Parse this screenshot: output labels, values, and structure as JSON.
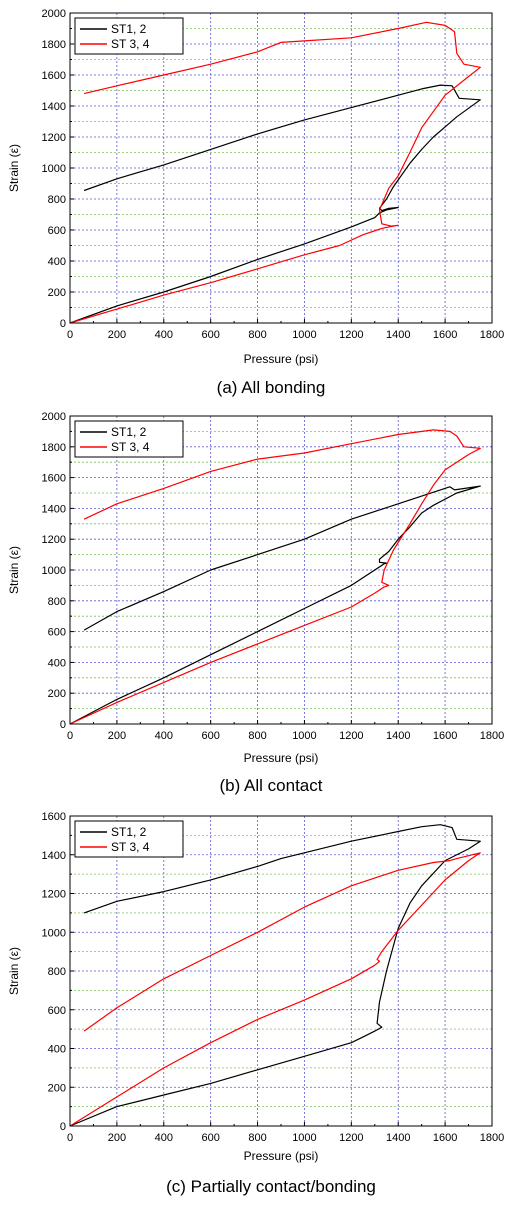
{
  "chart_data": [
    {
      "type": "line",
      "caption": "(a) All bonding",
      "xlabel": "Pressure (psi)",
      "ylabel": "Strain (ε)",
      "xlim": [
        0,
        1800
      ],
      "ylim": [
        0,
        2000
      ],
      "xticks": [
        0,
        200,
        400,
        600,
        800,
        1000,
        1200,
        1400,
        1600,
        1800
      ],
      "yticks": [
        0,
        200,
        400,
        600,
        800,
        1000,
        1200,
        1400,
        1600,
        1800,
        2000
      ],
      "grid": true,
      "legend_position": "top-left",
      "series": [
        {
          "name": "ST1, 2",
          "color": "#000000",
          "x": [
            0,
            200,
            400,
            600,
            800,
            1000,
            1200,
            1300,
            1320,
            1350,
            1400,
            1360,
            1330,
            1320,
            1350,
            1380,
            1450,
            1500,
            1550,
            1650,
            1750,
            1660,
            1630,
            1580,
            1500,
            1400,
            1200,
            1000,
            800,
            600,
            400,
            200,
            60
          ],
          "y": [
            0,
            110,
            200,
            300,
            410,
            510,
            620,
            680,
            710,
            730,
            745,
            740,
            725,
            740,
            800,
            880,
            1030,
            1120,
            1200,
            1330,
            1440,
            1450,
            1530,
            1535,
            1510,
            1470,
            1390,
            1310,
            1220,
            1120,
            1020,
            930,
            855
          ]
        },
        {
          "name": "ST 3, 4",
          "color": "#ff0000",
          "x": [
            0,
            200,
            400,
            600,
            800,
            1000,
            1150,
            1250,
            1310,
            1330,
            1360,
            1400,
            1370,
            1330,
            1320,
            1340,
            1360,
            1400,
            1450,
            1500,
            1600,
            1700,
            1750,
            1680,
            1650,
            1640,
            1600,
            1520,
            1400,
            1200,
            1000,
            900,
            800,
            600,
            400,
            200,
            60
          ],
          "y": [
            0,
            90,
            180,
            260,
            350,
            440,
            500,
            570,
            600,
            610,
            620,
            630,
            625,
            640,
            730,
            800,
            870,
            950,
            1100,
            1260,
            1470,
            1590,
            1650,
            1670,
            1740,
            1880,
            1920,
            1940,
            1900,
            1840,
            1820,
            1810,
            1750,
            1670,
            1600,
            1530,
            1480
          ]
        }
      ]
    },
    {
      "type": "line",
      "caption": "(b) All contact",
      "xlabel": "Pressure (psi)",
      "ylabel": "Strain (ε)",
      "xlim": [
        0,
        1800
      ],
      "ylim": [
        0,
        2000
      ],
      "xticks": [
        0,
        200,
        400,
        600,
        800,
        1000,
        1200,
        1400,
        1600,
        1800
      ],
      "yticks": [
        0,
        200,
        400,
        600,
        800,
        1000,
        1200,
        1400,
        1600,
        1800,
        2000
      ],
      "grid": true,
      "legend_position": "top-left",
      "series": [
        {
          "name": "ST1, 2",
          "color": "#000000",
          "x": [
            0,
            200,
            400,
            600,
            800,
            1000,
            1200,
            1340,
            1350,
            1320,
            1320,
            1360,
            1400,
            1450,
            1500,
            1550,
            1650,
            1750,
            1640,
            1620,
            1500,
            1400,
            1200,
            1000,
            800,
            600,
            400,
            200,
            60
          ],
          "y": [
            0,
            160,
            300,
            450,
            600,
            750,
            900,
            1040,
            1045,
            1050,
            1070,
            1120,
            1200,
            1280,
            1370,
            1420,
            1500,
            1545,
            1520,
            1540,
            1480,
            1430,
            1330,
            1200,
            1100,
            1000,
            860,
            730,
            610
          ]
        },
        {
          "name": "ST 3, 4",
          "color": "#ff0000",
          "x": [
            0,
            200,
            400,
            600,
            800,
            1000,
            1200,
            1300,
            1340,
            1360,
            1330,
            1340,
            1380,
            1450,
            1500,
            1550,
            1600,
            1700,
            1750,
            1680,
            1650,
            1620,
            1550,
            1400,
            1200,
            1000,
            800,
            600,
            400,
            200,
            60
          ],
          "y": [
            0,
            140,
            270,
            400,
            520,
            640,
            760,
            850,
            890,
            900,
            920,
            1000,
            1130,
            1300,
            1430,
            1550,
            1650,
            1750,
            1790,
            1800,
            1870,
            1900,
            1910,
            1880,
            1820,
            1760,
            1720,
            1640,
            1530,
            1430,
            1330
          ]
        }
      ]
    },
    {
      "type": "line",
      "caption": "(c) Partially contact/bonding",
      "xlabel": "Pressure (psi)",
      "ylabel": "Strain (ε)",
      "xlim": [
        0,
        1800
      ],
      "ylim": [
        0,
        1600
      ],
      "xticks": [
        0,
        200,
        400,
        600,
        800,
        1000,
        1200,
        1400,
        1600,
        1800
      ],
      "yticks": [
        0,
        200,
        400,
        600,
        800,
        1000,
        1200,
        1400,
        1600
      ],
      "grid": true,
      "legend_position": "top-left",
      "series": [
        {
          "name": "ST1, 2",
          "color": "#000000",
          "x": [
            0,
            200,
            400,
            600,
            800,
            1000,
            1200,
            1250,
            1300,
            1330,
            1310,
            1320,
            1350,
            1400,
            1450,
            1500,
            1600,
            1700,
            1750,
            1650,
            1630,
            1580,
            1500,
            1400,
            1200,
            1000,
            900,
            800,
            600,
            400,
            200,
            60
          ],
          "y": [
            0,
            100,
            160,
            220,
            290,
            360,
            430,
            460,
            490,
            510,
            530,
            640,
            800,
            1020,
            1150,
            1240,
            1370,
            1430,
            1470,
            1480,
            1540,
            1555,
            1545,
            1520,
            1470,
            1410,
            1380,
            1340,
            1270,
            1210,
            1160,
            1100
          ]
        },
        {
          "name": "ST 3, 4",
          "color": "#ff0000",
          "x": [
            0,
            200,
            400,
            600,
            800,
            1000,
            1200,
            1300,
            1320,
            1310,
            1330,
            1400,
            1500,
            1600,
            1700,
            1750,
            1650,
            1620,
            1550,
            1400,
            1200,
            1000,
            800,
            600,
            400,
            200,
            60
          ],
          "y": [
            0,
            150,
            300,
            430,
            550,
            650,
            760,
            830,
            850,
            860,
            900,
            1010,
            1140,
            1270,
            1370,
            1410,
            1380,
            1370,
            1360,
            1320,
            1240,
            1130,
            1000,
            880,
            760,
            610,
            490
          ]
        }
      ]
    }
  ]
}
